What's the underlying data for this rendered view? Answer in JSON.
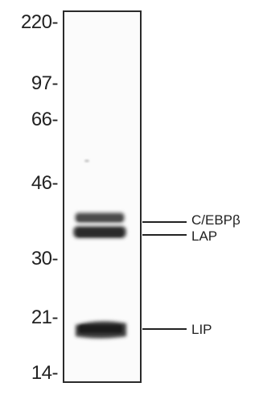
{
  "markers": [
    {
      "label": "220-"
    },
    {
      "label": "97-"
    },
    {
      "label": "66-"
    },
    {
      "label": "46-"
    },
    {
      "label": "30-"
    },
    {
      "label": "21-"
    },
    {
      "label": "14-"
    }
  ],
  "bands": [
    {
      "label": "C/EBPβ"
    },
    {
      "label": "LAP"
    },
    {
      "label": "LIP"
    }
  ]
}
